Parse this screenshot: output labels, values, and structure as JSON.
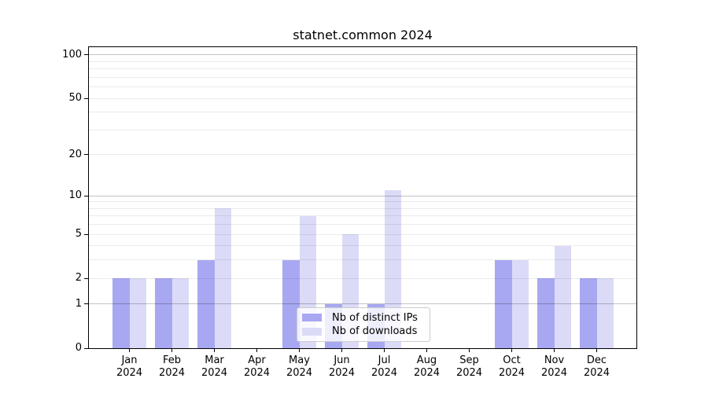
{
  "chart_data": {
    "type": "bar",
    "title": "statnet.common 2024",
    "x_year": "2024",
    "categories": [
      "Jan",
      "Feb",
      "Mar",
      "Apr",
      "May",
      "Jun",
      "Jul",
      "Aug",
      "Sep",
      "Oct",
      "Nov",
      "Dec"
    ],
    "series": [
      {
        "name": "Nb of distinct IPs",
        "color": "#a8a8f2",
        "values": [
          2,
          2,
          3,
          0,
          3,
          1,
          1,
          0,
          0,
          3,
          2,
          2
        ]
      },
      {
        "name": "Nb of downloads",
        "color": "#dbdbf8",
        "values": [
          2,
          2,
          8,
          0,
          7,
          5,
          11,
          0,
          0,
          3,
          4,
          2
        ]
      }
    ],
    "y_scale": "log1p",
    "y_ticks": [
      0,
      1,
      2,
      5,
      10,
      20,
      50,
      100
    ],
    "ylim": [
      0,
      113
    ],
    "grid": true,
    "legend_position": "lower-center",
    "colors": {
      "grid_minor": "rgba(0,0,0,0.08)",
      "grid_major": "rgba(0,0,0,0.24)",
      "spine": "#000000",
      "background": "#ffffff"
    }
  }
}
